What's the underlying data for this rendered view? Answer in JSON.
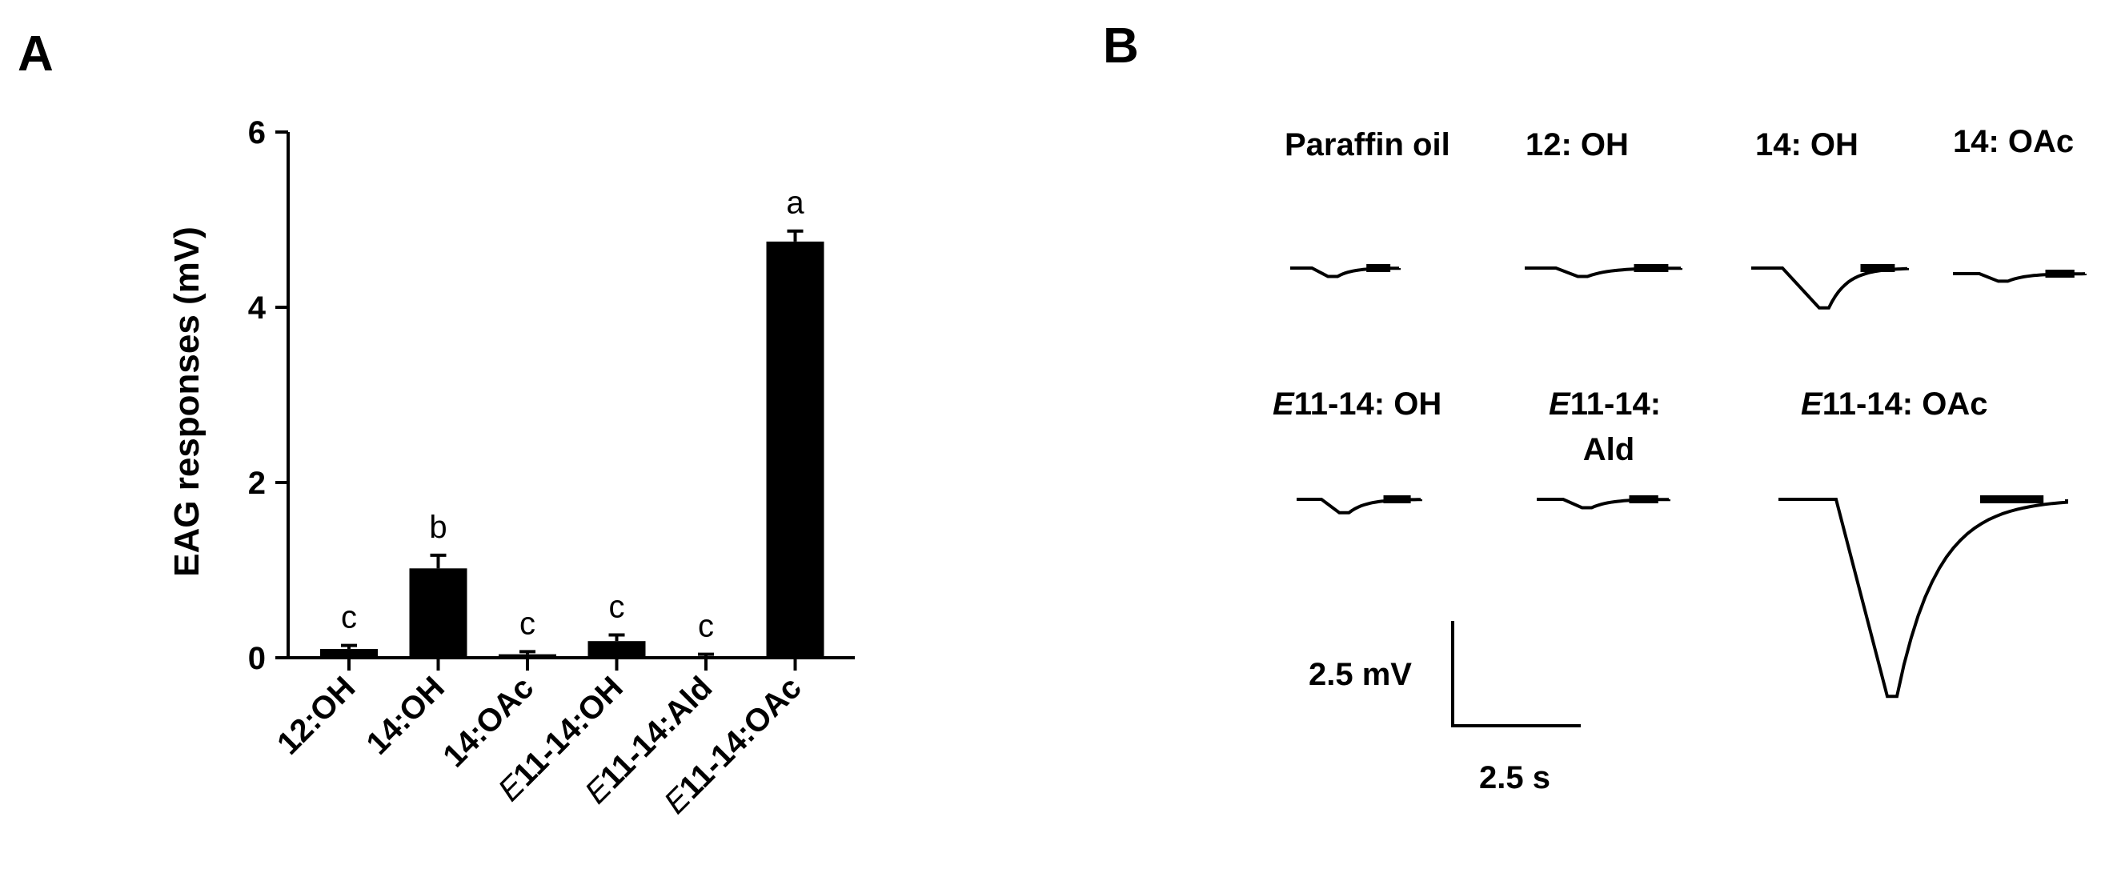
{
  "panel_a_label": "A",
  "panel_b_label": "B",
  "chart_data": {
    "type": "bar",
    "ylabel": "EAG responses (mV)",
    "ylim": [
      0,
      6
    ],
    "yticks": [
      "0",
      "2",
      "4",
      "6"
    ],
    "categories": [
      {
        "prefix": "",
        "rest": "12:OH"
      },
      {
        "prefix": "",
        "rest": "14:OH"
      },
      {
        "prefix": "",
        "rest": "14:OAc"
      },
      {
        "prefix": "E",
        "rest": "11-14:OH"
      },
      {
        "prefix": "E",
        "rest": "11-14:Ald"
      },
      {
        "prefix": "E",
        "rest": "11-14:OAc"
      }
    ],
    "values": [
      0.1,
      1.02,
      0.04,
      0.19,
      0.01,
      4.75
    ],
    "errors": [
      0.04,
      0.15,
      0.03,
      0.07,
      0.03,
      0.12
    ],
    "significance": [
      "c",
      "b",
      "c",
      "c",
      "c",
      "a"
    ],
    "bar_color": "#000000"
  },
  "traces": {
    "items": [
      {
        "prefix": "",
        "label": "Paraffin oil",
        "amplitude_mv": 0.2
      },
      {
        "prefix": "",
        "label": "12: OH",
        "amplitude_mv": 0.2
      },
      {
        "prefix": "",
        "label": "14: OH",
        "amplitude_mv": 0.95
      },
      {
        "prefix": "",
        "label": "14: OAc",
        "amplitude_mv": 0.18
      },
      {
        "prefix": "E",
        "label": "11-14: OH",
        "amplitude_mv": 0.32
      },
      {
        "prefix": "E",
        "label": "11-14:",
        "label_line2": "Ald",
        "amplitude_mv": 0.2
      },
      {
        "prefix": "E",
        "label": "11-14: OAc",
        "amplitude_mv": 4.7
      }
    ],
    "scale_bar": {
      "voltage_label": "2.5 mV",
      "time_label": "2.5 s"
    }
  }
}
